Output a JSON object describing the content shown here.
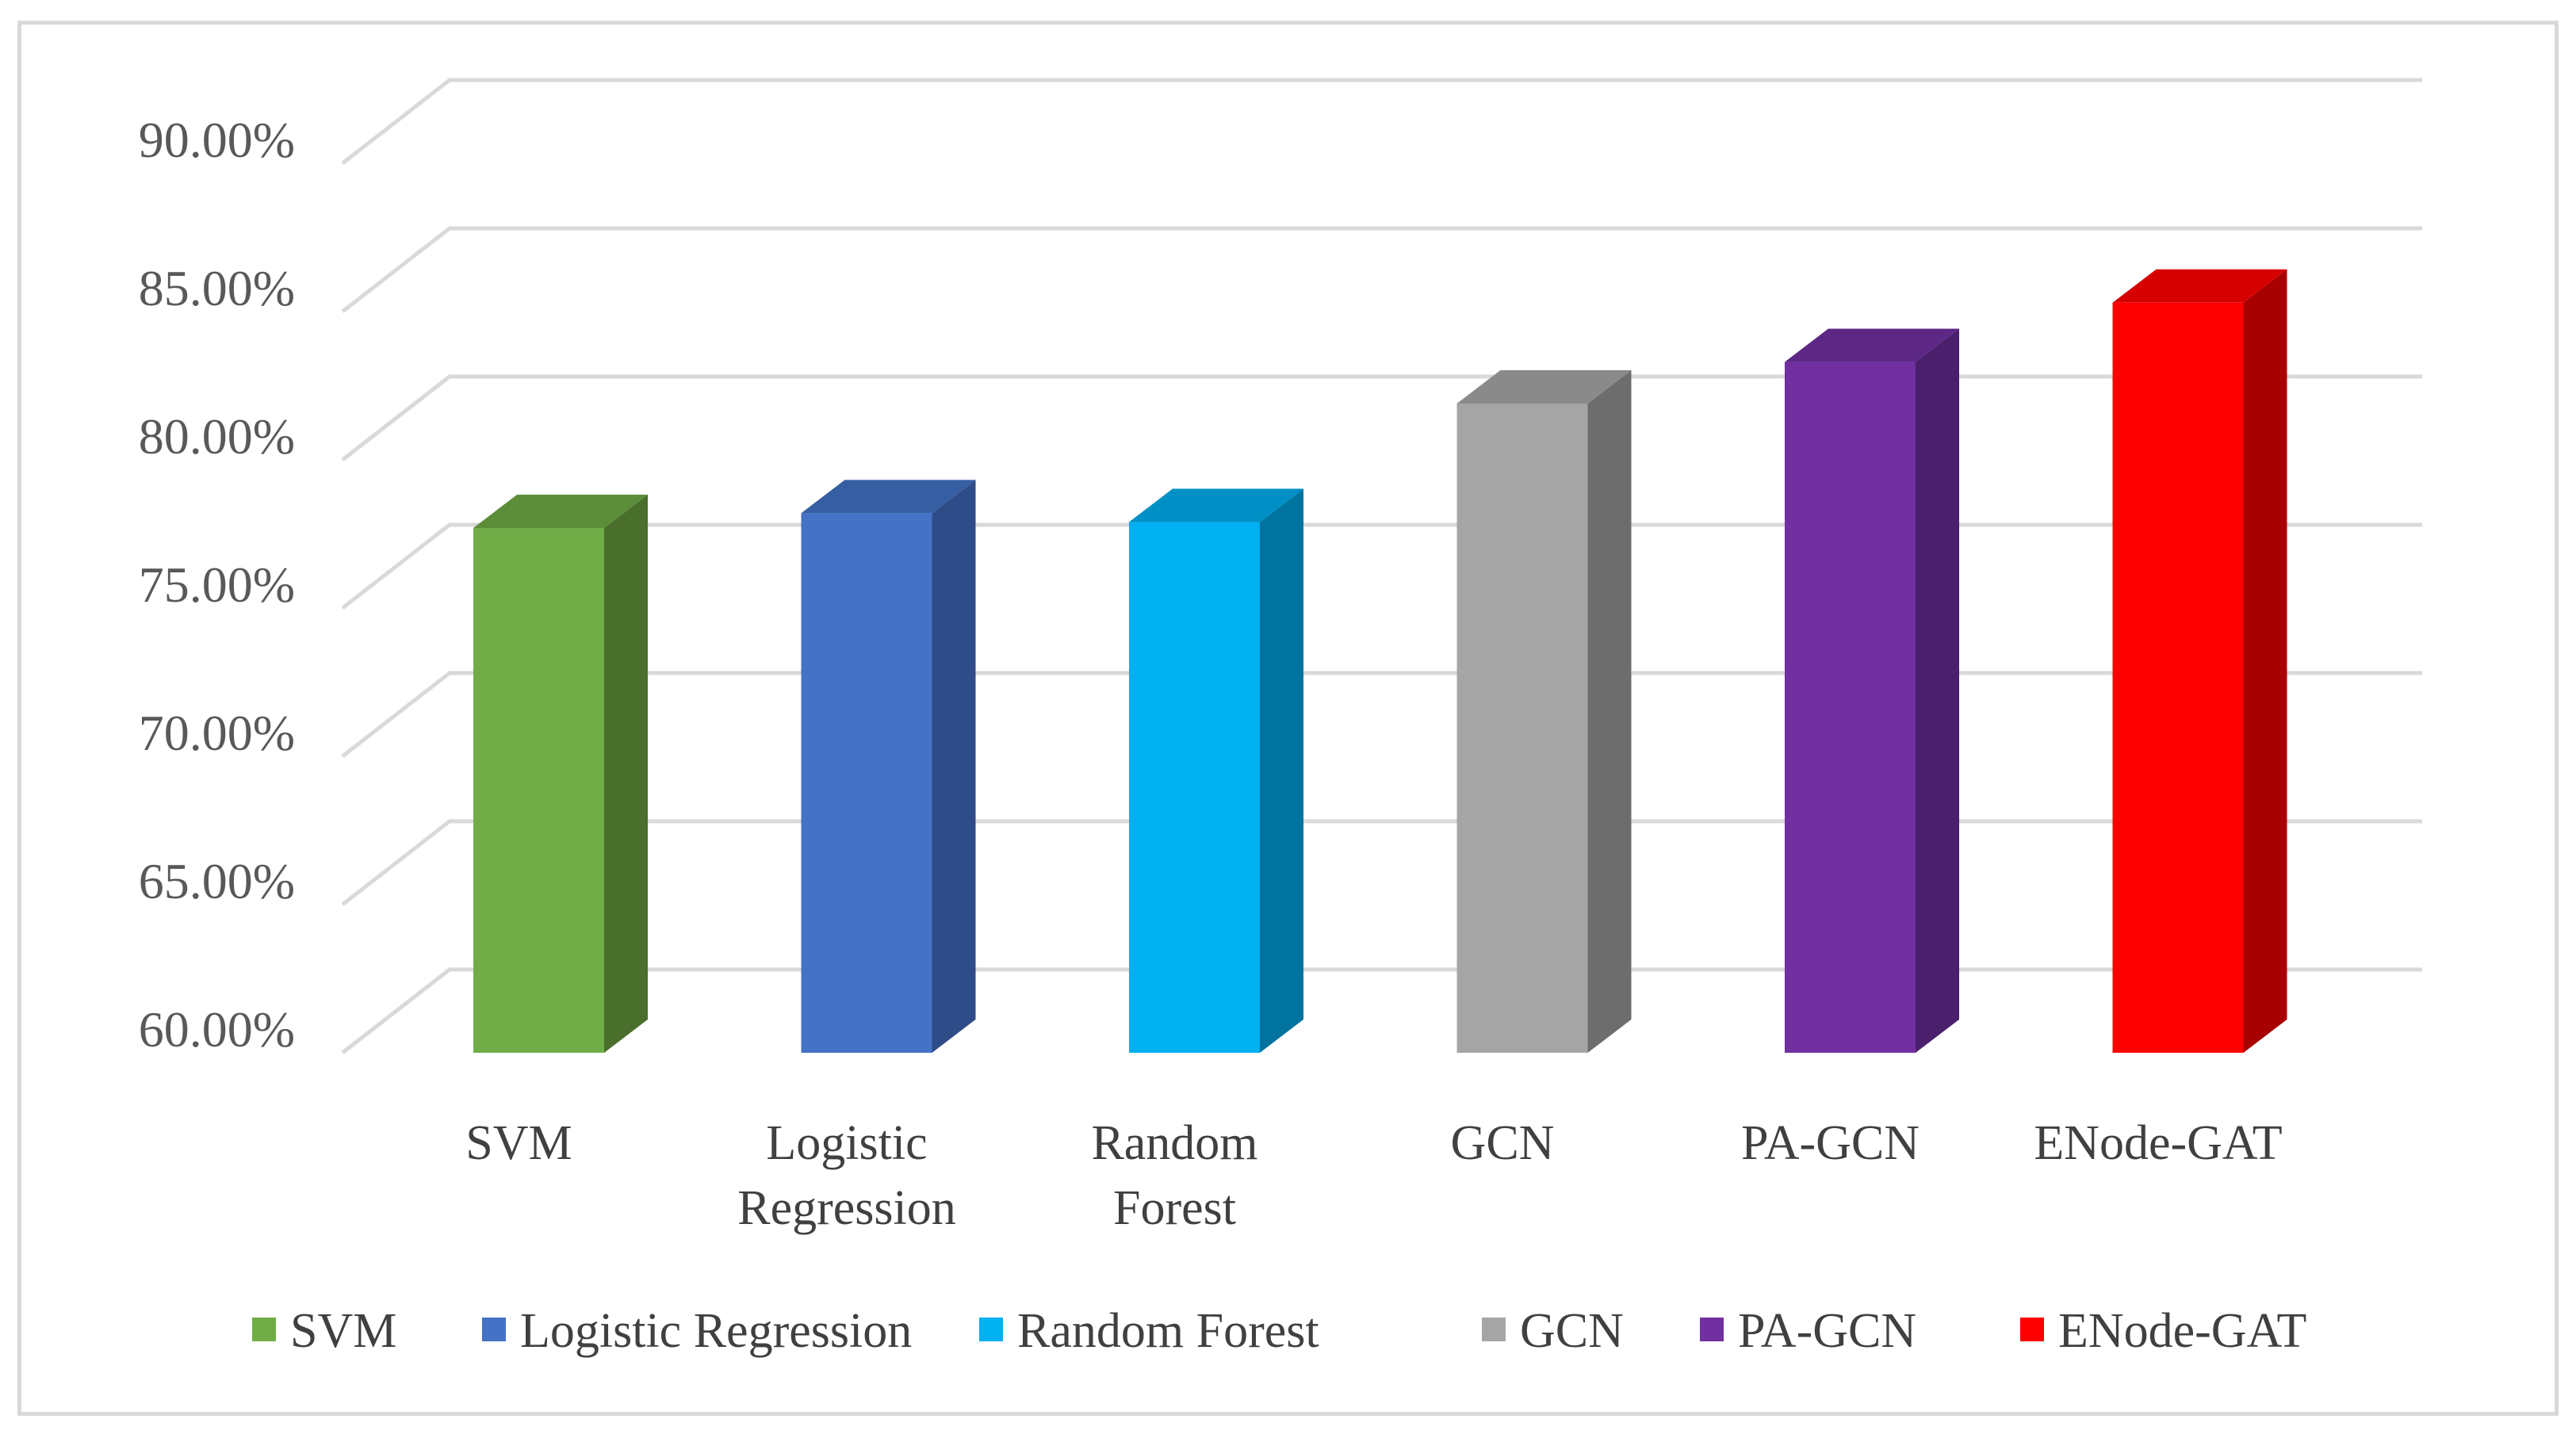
{
  "chart_data": {
    "type": "bar",
    "style": "3d-column",
    "title": "",
    "xlabel": "",
    "ylabel": "",
    "ylim": [
      0.6,
      0.9
    ],
    "ytick_step": 0.05,
    "yticks": [
      "60.00%",
      "65.00%",
      "70.00%",
      "75.00%",
      "80.00%",
      "85.00%",
      "90.00%"
    ],
    "categories": [
      "SVM",
      "Logistic Regression",
      "Random Forest",
      "GCN",
      "PA-GCN",
      "ENode-GAT"
    ],
    "category_label_lines": [
      [
        "SVM"
      ],
      [
        "Logistic",
        "Regression"
      ],
      [
        "Random",
        "Forest"
      ],
      [
        "GCN"
      ],
      [
        "PA-GCN"
      ],
      [
        "ENode-GAT"
      ]
    ],
    "values": [
      0.777,
      0.782,
      0.779,
      0.819,
      0.833,
      0.853
    ],
    "colors": {
      "front": [
        "#70ad47",
        "#4472c4",
        "#00b0f0",
        "#a5a5a5",
        "#7030a0",
        "#ff0000"
      ],
      "side": [
        "#4a6e2c",
        "#2e4c87",
        "#00749f",
        "#6d6d6d",
        "#4a1f6b",
        "#a80000"
      ],
      "top": [
        "#5c8e3a",
        "#365ea3",
        "#0090c5",
        "#8a8a8a",
        "#5d2786",
        "#d60000"
      ]
    },
    "grid": true,
    "gridline_color": "#d9d9d9",
    "legend_position": "bottom",
    "legend": [
      "SVM",
      "Logistic Regression",
      "Random Forest",
      "GCN",
      "PA-GCN",
      "ENode-GAT"
    ]
  }
}
